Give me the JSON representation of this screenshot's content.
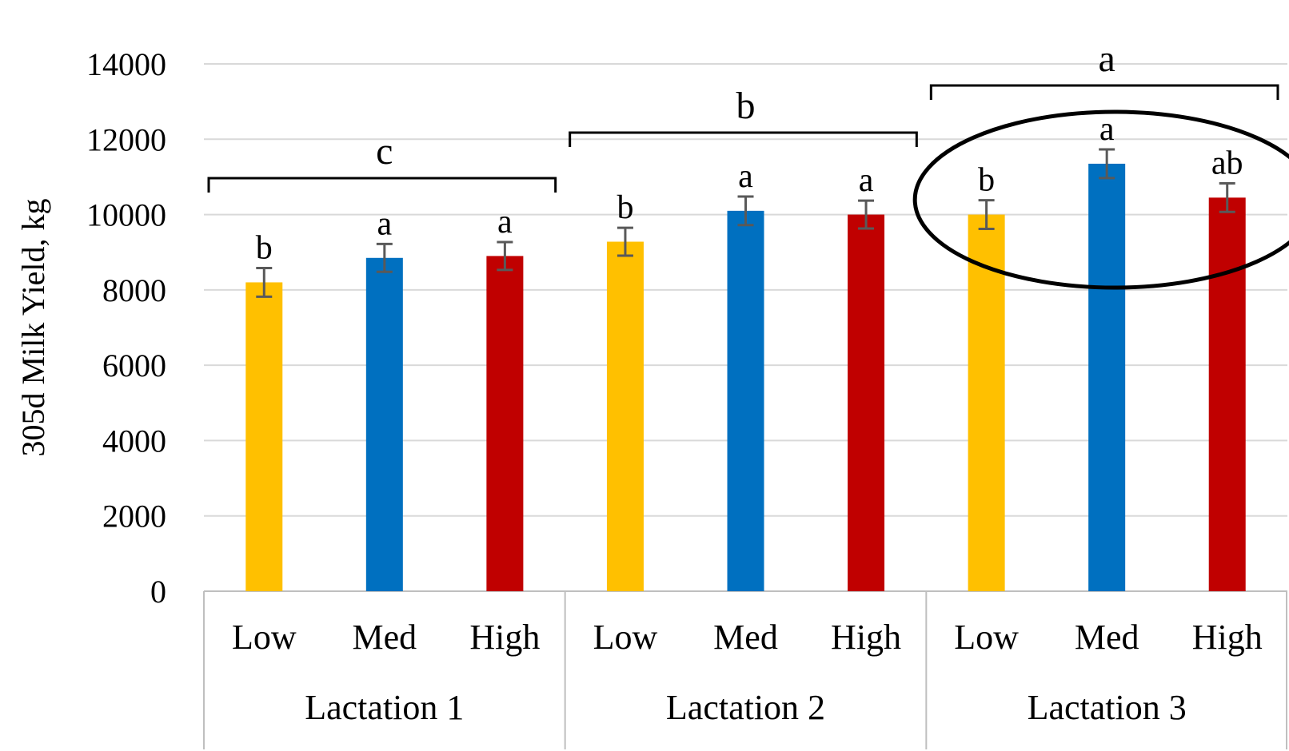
{
  "chart_data": {
    "type": "bar",
    "ylabel": "305d Milk Yield, kg",
    "ylim": [
      0,
      14000
    ],
    "yticks": [
      0,
      2000,
      4000,
      6000,
      8000,
      10000,
      12000,
      14000
    ],
    "grid": true,
    "legend": "none",
    "groups": [
      {
        "name": "Lactation 1",
        "significance": "c",
        "bars": [
          {
            "category": "Low",
            "value": 8200,
            "error": 380,
            "label": "b",
            "color": "#FFC000"
          },
          {
            "category": "Med",
            "value": 8850,
            "error": 370,
            "label": "a",
            "color": "#0070C0"
          },
          {
            "category": "High",
            "value": 8900,
            "error": 370,
            "label": "a",
            "color": "#C00000"
          }
        ]
      },
      {
        "name": "Lactation 2",
        "significance": "b",
        "bars": [
          {
            "category": "Low",
            "value": 9280,
            "error": 370,
            "label": "b",
            "color": "#FFC000"
          },
          {
            "category": "Med",
            "value": 10100,
            "error": 380,
            "label": "a",
            "color": "#0070C0"
          },
          {
            "category": "High",
            "value": 10000,
            "error": 370,
            "label": "a",
            "color": "#C00000"
          }
        ]
      },
      {
        "name": "Lactation 3",
        "significance": "a",
        "bars": [
          {
            "category": "Low",
            "value": 10000,
            "error": 380,
            "label": "b",
            "color": "#FFC000"
          },
          {
            "category": "Med",
            "value": 11350,
            "error": 380,
            "label": "a",
            "color": "#0070C0"
          },
          {
            "category": "High",
            "value": 10450,
            "error": 380,
            "label": "ab",
            "color": "#C00000"
          }
        ]
      }
    ],
    "highlight_group": "Lactation 3"
  }
}
